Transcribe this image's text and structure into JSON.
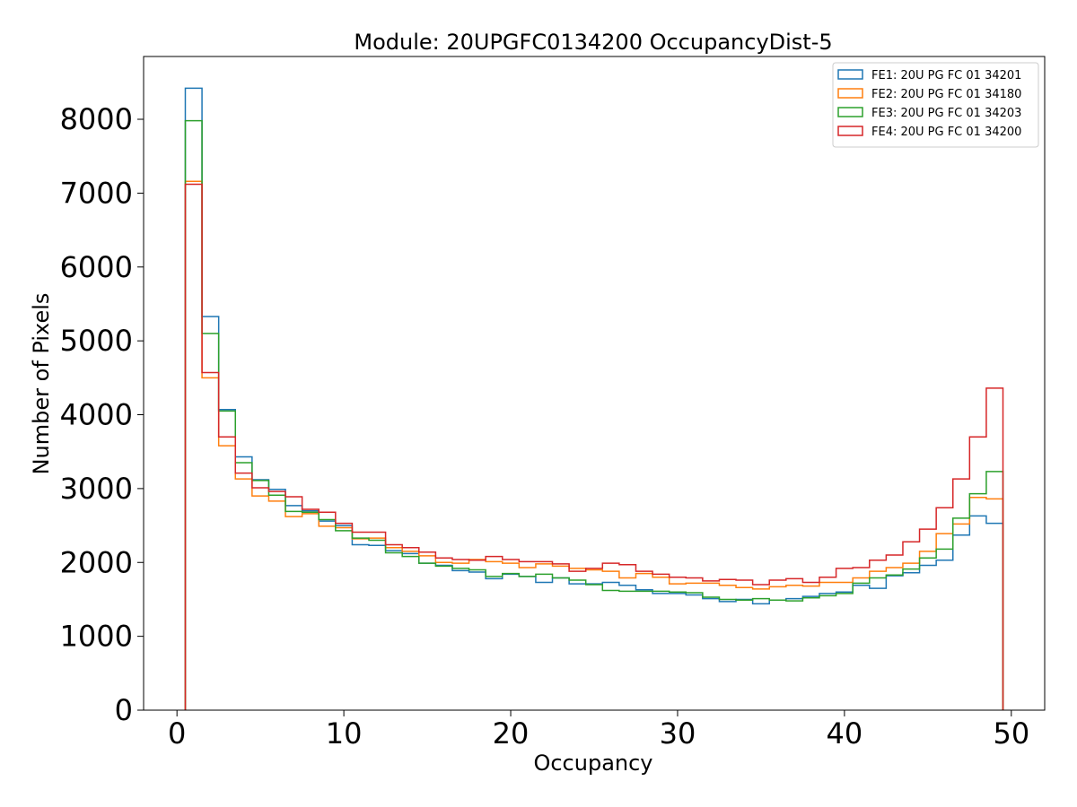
{
  "chart_data": {
    "type": "histogram-step",
    "title": "Module: 20UPGFC0134200 OccupancyDist-5",
    "xlabel": "Occupancy",
    "ylabel": "Number of Pixels",
    "xlim": [
      -2,
      52
    ],
    "ylim": [
      0,
      8850
    ],
    "xticks": [
      0,
      10,
      20,
      30,
      40,
      50
    ],
    "yticks": [
      0,
      1000,
      2000,
      3000,
      4000,
      5000,
      6000,
      7000,
      8000
    ],
    "bin_edges_start": 0.5,
    "bin_width": 1,
    "legend_position": "top-right",
    "series": [
      {
        "name": "FE1: 20U PG FC 01 34201",
        "color": "#1f77b4",
        "values": [
          8420,
          5330,
          4070,
          3430,
          3120,
          2990,
          2770,
          2700,
          2560,
          2500,
          2240,
          2230,
          2160,
          2120,
          1990,
          1960,
          1890,
          1870,
          1780,
          1840,
          1810,
          1730,
          1790,
          1710,
          1710,
          1730,
          1690,
          1630,
          1580,
          1580,
          1560,
          1510,
          1470,
          1500,
          1440,
          1490,
          1510,
          1540,
          1580,
          1600,
          1690,
          1650,
          1820,
          1860,
          1960,
          2030,
          2370,
          2630,
          2530
        ]
      },
      {
        "name": "FE2: 20U PG FC 01 34180",
        "color": "#ff7f0e",
        "values": [
          7160,
          4500,
          3580,
          3130,
          2900,
          2830,
          2620,
          2660,
          2490,
          2470,
          2320,
          2330,
          2200,
          2150,
          2090,
          2000,
          1990,
          2040,
          2010,
          1990,
          1930,
          1980,
          1950,
          1920,
          1900,
          1880,
          1790,
          1850,
          1800,
          1710,
          1720,
          1720,
          1690,
          1660,
          1640,
          1670,
          1690,
          1680,
          1730,
          1730,
          1790,
          1880,
          1930,
          1990,
          2150,
          2390,
          2520,
          2880,
          2860
        ]
      },
      {
        "name": "FE3: 20U PG FC 01 34203",
        "color": "#2ca02c",
        "values": [
          7980,
          5100,
          4050,
          3350,
          3110,
          2910,
          2690,
          2680,
          2580,
          2430,
          2330,
          2300,
          2130,
          2080,
          1990,
          1950,
          1920,
          1900,
          1810,
          1850,
          1810,
          1840,
          1790,
          1760,
          1700,
          1620,
          1610,
          1610,
          1610,
          1600,
          1590,
          1530,
          1500,
          1490,
          1510,
          1490,
          1480,
          1520,
          1550,
          1580,
          1720,
          1790,
          1830,
          1910,
          2060,
          2180,
          2600,
          2930,
          3230
        ]
      },
      {
        "name": "FE4: 20U PG FC 01 34200",
        "color": "#d62728",
        "values": [
          7120,
          4570,
          3700,
          3210,
          3010,
          2960,
          2890,
          2720,
          2680,
          2530,
          2410,
          2410,
          2240,
          2200,
          2140,
          2060,
          2040,
          2030,
          2080,
          2040,
          2010,
          2010,
          1980,
          1880,
          1920,
          1990,
          1970,
          1880,
          1840,
          1800,
          1790,
          1750,
          1770,
          1760,
          1700,
          1760,
          1780,
          1730,
          1800,
          1920,
          1930,
          2030,
          2100,
          2280,
          2450,
          2740,
          3130,
          3700,
          4360
        ]
      }
    ]
  }
}
